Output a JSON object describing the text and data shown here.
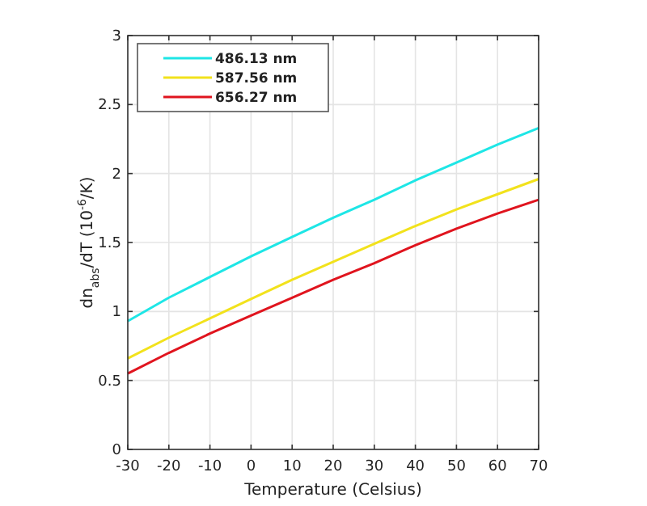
{
  "chart_data": {
    "type": "line",
    "xlabel": "Temperature (Celsius)",
    "ylabel": "dn$_{abs}$/dT (10$^{-6}$/K)",
    "x": [
      -30,
      -20,
      -10,
      0,
      10,
      20,
      30,
      40,
      50,
      60,
      70
    ],
    "series": [
      {
        "name": "486.13 nm",
        "color": "#1ee6e6",
        "values": [
          0.93,
          1.1,
          1.25,
          1.4,
          1.54,
          1.68,
          1.81,
          1.95,
          2.08,
          2.21,
          2.33
        ]
      },
      {
        "name": "587.56 nm",
        "color": "#f2e21c",
        "values": [
          0.66,
          0.81,
          0.95,
          1.09,
          1.23,
          1.36,
          1.49,
          1.62,
          1.74,
          1.85,
          1.96
        ]
      },
      {
        "name": "656.27 nm",
        "color": "#e0141e",
        "values": [
          0.55,
          0.7,
          0.84,
          0.97,
          1.1,
          1.23,
          1.35,
          1.48,
          1.6,
          1.71,
          1.81
        ]
      }
    ],
    "xlim": [
      -30,
      70
    ],
    "xticks": [
      -30,
      -20,
      -10,
      0,
      10,
      20,
      30,
      40,
      50,
      60,
      70
    ],
    "ylim": [
      0,
      3
    ],
    "yticks": [
      0,
      0.5,
      1,
      1.5,
      2,
      2.5,
      3
    ],
    "grid": true,
    "legend": "top left",
    "marker": "none",
    "line_style": "solid"
  }
}
